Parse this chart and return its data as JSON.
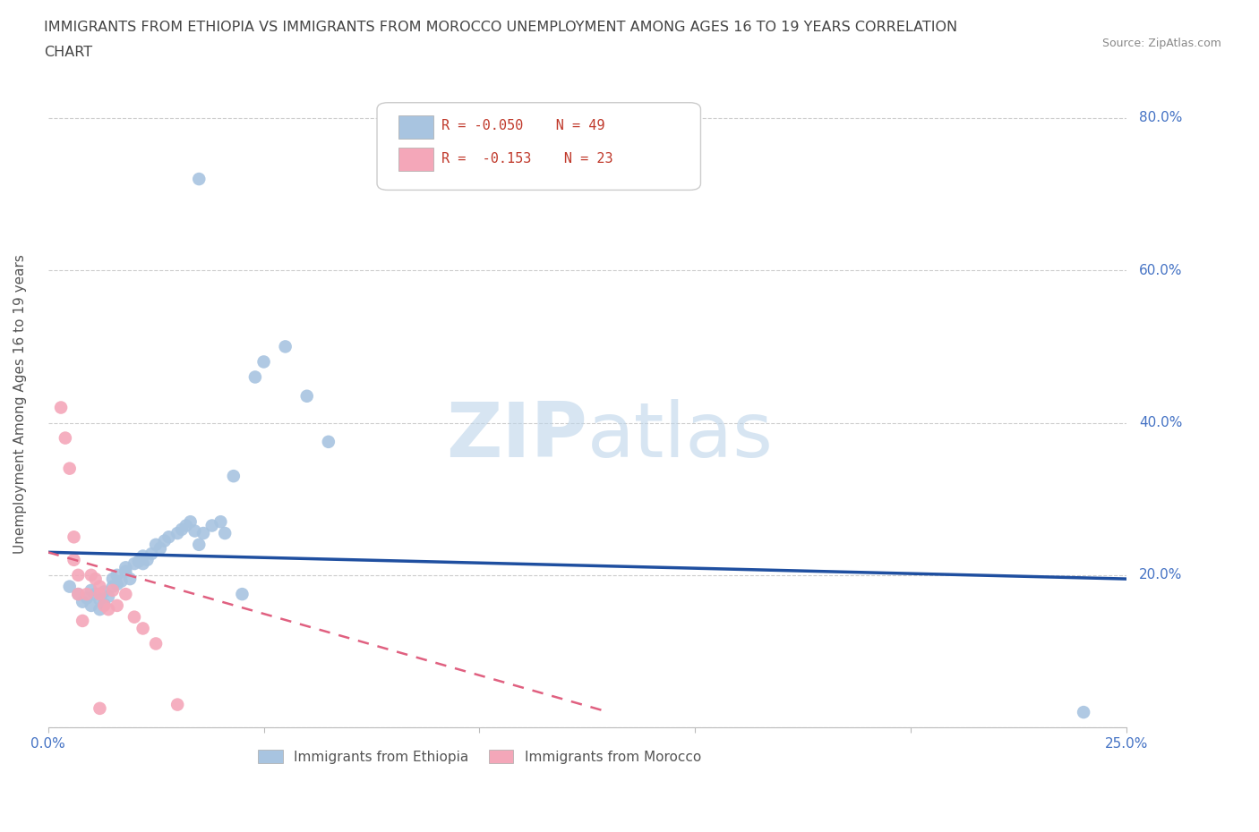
{
  "title_line1": "IMMIGRANTS FROM ETHIOPIA VS IMMIGRANTS FROM MOROCCO UNEMPLOYMENT AMONG AGES 16 TO 19 YEARS CORRELATION",
  "title_line2": "CHART",
  "source": "Source: ZipAtlas.com",
  "ylabel": "Unemployment Among Ages 16 to 19 years",
  "xlim": [
    0.0,
    0.25
  ],
  "ylim": [
    0.0,
    0.85
  ],
  "yticks": [
    0.0,
    0.2,
    0.4,
    0.6,
    0.8
  ],
  "ytick_labels": [
    "",
    "20.0%",
    "40.0%",
    "60.0%",
    "80.0%"
  ],
  "legend_ethiopia_R": "R = -0.050",
  "legend_ethiopia_N": "N = 49",
  "legend_morocco_R": "R =  -0.153",
  "legend_morocco_N": "N = 23",
  "ethiopia_color": "#a8c4e0",
  "morocco_color": "#f4a7b9",
  "trendline_ethiopia_color": "#1f4fa0",
  "trendline_morocco_color": "#e06080",
  "watermark_zip": "ZIP",
  "watermark_atlas": "atlas",
  "background_color": "#ffffff",
  "grid_color": "#cccccc",
  "title_color": "#444444",
  "axis_color": "#4472c4",
  "legend_text_color": "#c0392b",
  "ethiopia_scatter_x": [
    0.005,
    0.007,
    0.008,
    0.009,
    0.01,
    0.01,
    0.011,
    0.012,
    0.012,
    0.013,
    0.013,
    0.014,
    0.015,
    0.015,
    0.016,
    0.016,
    0.017,
    0.018,
    0.018,
    0.019,
    0.02,
    0.021,
    0.022,
    0.022,
    0.023,
    0.024,
    0.025,
    0.026,
    0.027,
    0.028,
    0.03,
    0.031,
    0.032,
    0.033,
    0.034,
    0.035,
    0.036,
    0.038,
    0.04,
    0.041,
    0.043,
    0.045,
    0.048,
    0.05,
    0.055,
    0.06,
    0.065,
    0.24,
    0.035
  ],
  "ethiopia_scatter_y": [
    0.185,
    0.175,
    0.165,
    0.17,
    0.18,
    0.16,
    0.175,
    0.168,
    0.155,
    0.178,
    0.162,
    0.172,
    0.195,
    0.185,
    0.2,
    0.188,
    0.192,
    0.21,
    0.205,
    0.195,
    0.215,
    0.218,
    0.225,
    0.215,
    0.22,
    0.228,
    0.24,
    0.235,
    0.245,
    0.25,
    0.255,
    0.26,
    0.265,
    0.27,
    0.258,
    0.24,
    0.255,
    0.265,
    0.27,
    0.255,
    0.33,
    0.175,
    0.46,
    0.48,
    0.5,
    0.435,
    0.375,
    0.02,
    0.72
  ],
  "morocco_scatter_x": [
    0.003,
    0.004,
    0.005,
    0.006,
    0.006,
    0.007,
    0.007,
    0.008,
    0.009,
    0.01,
    0.011,
    0.012,
    0.012,
    0.013,
    0.014,
    0.015,
    0.016,
    0.018,
    0.02,
    0.022,
    0.025,
    0.03,
    0.012
  ],
  "morocco_scatter_y": [
    0.42,
    0.38,
    0.34,
    0.25,
    0.22,
    0.2,
    0.175,
    0.14,
    0.175,
    0.2,
    0.195,
    0.185,
    0.175,
    0.16,
    0.155,
    0.18,
    0.16,
    0.175,
    0.145,
    0.13,
    0.11,
    0.03,
    0.025
  ],
  "ethiopia_trend_x": [
    0.0,
    0.25
  ],
  "ethiopia_trend_y": [
    0.23,
    0.195
  ],
  "morocco_trend_x": [
    0.0,
    0.13
  ],
  "morocco_trend_y": [
    0.23,
    0.02
  ]
}
